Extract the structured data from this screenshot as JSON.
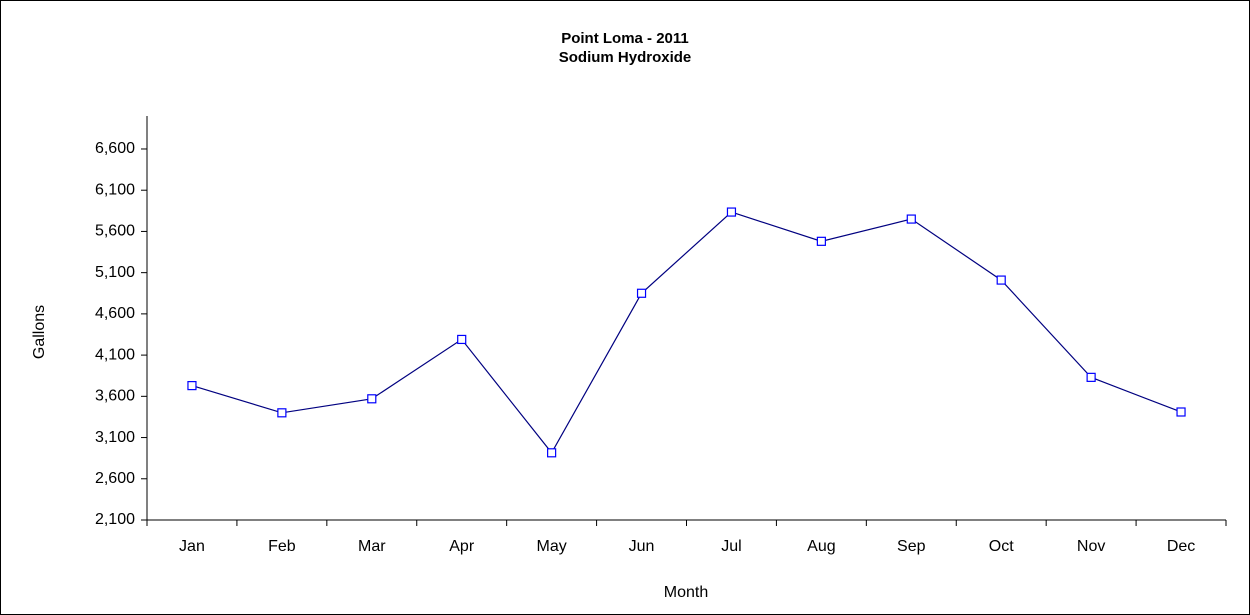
{
  "chart_data": {
    "type": "line",
    "title": "Point Loma - 2011",
    "subtitle": "Sodium Hydroxide",
    "x_label": "Month",
    "y_label": "Gallons",
    "categories": [
      "Jan",
      "Feb",
      "Mar",
      "Apr",
      "May",
      "Jun",
      "Jul",
      "Aug",
      "Sep",
      "Oct",
      "Nov",
      "Dec"
    ],
    "series": [
      {
        "name": "Sodium Hydroxide",
        "color": "#000080",
        "marker_color": "#0000ff",
        "values": [
          3730,
          3400,
          3570,
          4290,
          2915,
          4850,
          5835,
          5480,
          5750,
          5010,
          3830,
          3410
        ]
      }
    ],
    "ylim": [
      2100,
      7000
    ],
    "yticks": [
      {
        "value": 2100,
        "label": "2,100"
      },
      {
        "value": 2600,
        "label": "2,600"
      },
      {
        "value": 3100,
        "label": "3,100"
      },
      {
        "value": 3600,
        "label": "3,600"
      },
      {
        "value": 4100,
        "label": "4,100"
      },
      {
        "value": 4600,
        "label": "4,600"
      },
      {
        "value": 5100,
        "label": "5,100"
      },
      {
        "value": 5600,
        "label": "5,600"
      },
      {
        "value": 6100,
        "label": "6,100"
      },
      {
        "value": 6600,
        "label": "6,600"
      }
    ],
    "grid": false
  }
}
